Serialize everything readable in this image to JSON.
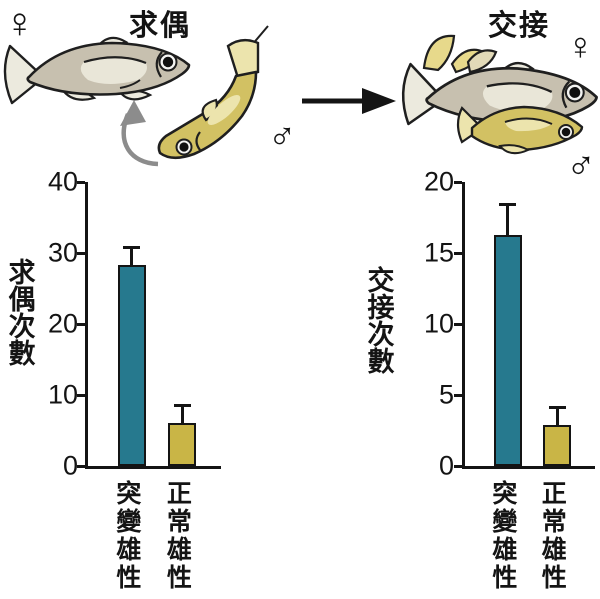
{
  "figure": {
    "panels": {
      "courtship": {
        "title": "求偶",
        "female_symbol": "♀",
        "male_symbol": "♂"
      },
      "mating": {
        "title": "交接",
        "female_symbol": "♀",
        "male_symbol": "♂"
      }
    },
    "icons": {
      "transition_arrow": "right-arrow",
      "rotation_arrow": "curved-up-arrow"
    },
    "colors": {
      "teal_bar": "#26798e",
      "yellow_bar": "#c9b546",
      "female_fish_body": "#c7c0af",
      "male_fish_body": "#d2c163",
      "light_fin": "#eceade",
      "male_light_fin": "#ece4ad",
      "outline": "#1f1f1f",
      "gray_arrow": "#8c8c8c",
      "black_arrow": "#141414"
    }
  },
  "chart_data": [
    {
      "type": "bar",
      "title": "求偶",
      "ylabel": "求偶次數",
      "categories": [
        "突變雄性",
        "正常雄性"
      ],
      "values": [
        28.3,
        6.0
      ],
      "errors": [
        2.5,
        2.5
      ],
      "ylim": [
        0,
        40
      ],
      "yticks": [
        0,
        10,
        20,
        30,
        40
      ],
      "bar_colors": [
        "#26798e",
        "#c9b546"
      ],
      "grid": false,
      "legend": "none"
    },
    {
      "type": "bar",
      "title": "交接",
      "ylabel": "交接次數",
      "categories": [
        "突變雄性",
        "正常雄性"
      ],
      "values": [
        16.3,
        2.9
      ],
      "errors": [
        2.1,
        1.2
      ],
      "ylim": [
        0,
        20
      ],
      "yticks": [
        0,
        5,
        10,
        15,
        20
      ],
      "bar_colors": [
        "#26798e",
        "#c9b546"
      ],
      "grid": false,
      "legend": "none"
    }
  ]
}
